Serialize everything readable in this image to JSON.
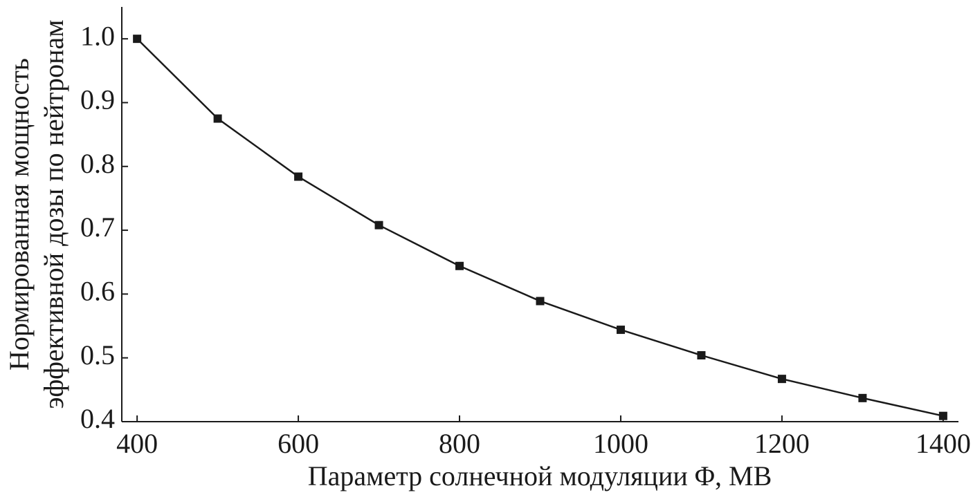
{
  "chart_data": {
    "type": "line",
    "xlabel": "Параметр солнечной модуляции Φ, МВ",
    "ylabel": [
      "Нормированная мощность",
      "эффективной дозы по нейтронам"
    ],
    "x": [
      400,
      500,
      600,
      700,
      800,
      900,
      1000,
      1100,
      1200,
      1300,
      1400
    ],
    "series": [
      {
        "color": "#1a1a1a",
        "values": [
          1.0,
          0.875,
          0.784,
          0.708,
          0.644,
          0.589,
          0.544,
          0.504,
          0.467,
          0.437,
          0.409
        ]
      }
    ],
    "xlim": [
      381,
      1419
    ],
    "xticks": [
      400,
      600,
      800,
      1000,
      1200,
      1400
    ],
    "ylim": [
      0.4,
      1.05
    ],
    "yticks": [
      0.4,
      0.5,
      0.6,
      0.7,
      0.8,
      0.9,
      {
        "value": 1,
        "label": "1.0"
      }
    ],
    "grid": false
  }
}
